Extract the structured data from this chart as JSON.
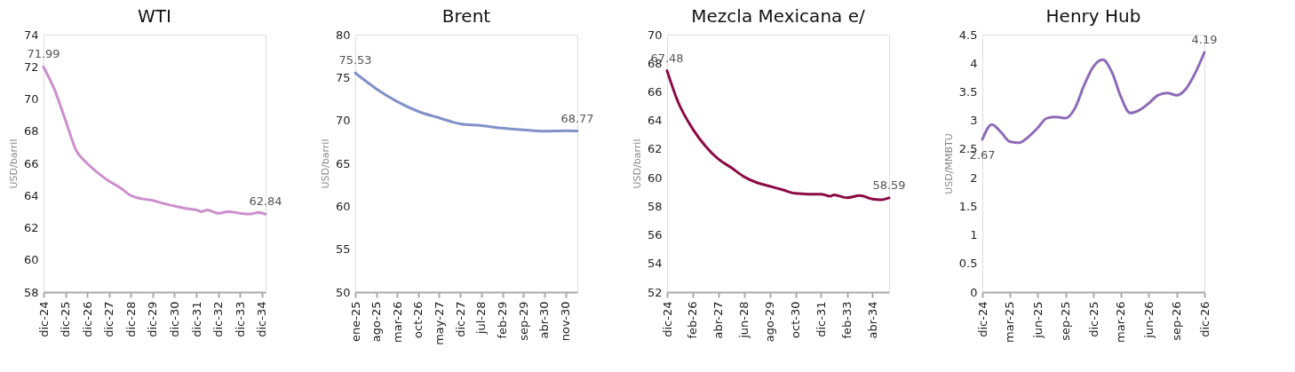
{
  "chart_data": [
    {
      "type": "line",
      "title": "WTI",
      "ylabel": "USD/barril",
      "x": [
        "2024-12",
        "2025-06",
        "2025-12",
        "2026-06",
        "2026-12",
        "2027-06",
        "2027-12",
        "2028-06",
        "2028-12",
        "2029-06",
        "2029-12",
        "2030-06",
        "2030-12",
        "2031-06",
        "2031-12",
        "2032-03",
        "2032-06",
        "2032-12",
        "2033-06",
        "2033-12",
        "2034-06",
        "2034-10",
        "2035-02"
      ],
      "series": [
        {
          "color": "#cc8fcc",
          "values": [
            71.99,
            70.6,
            68.7,
            66.8,
            66.0,
            65.4,
            64.9,
            64.5,
            64.0,
            63.8,
            63.7,
            63.5,
            63.35,
            63.2,
            63.1,
            63.0,
            63.1,
            62.9,
            63.0,
            62.9,
            62.85,
            62.95,
            62.84
          ]
        }
      ],
      "xlim": [
        "2024-12",
        "2035-02"
      ],
      "xticks": [
        {
          "value": "2024-12",
          "label": "dic-24"
        },
        {
          "value": "2025-12",
          "label": "dic-25"
        },
        {
          "value": "2026-12",
          "label": "dic-26"
        },
        {
          "value": "2027-12",
          "label": "dic-27"
        },
        {
          "value": "2028-12",
          "label": "dic-28"
        },
        {
          "value": "2029-12",
          "label": "dic-29"
        },
        {
          "value": "2030-12",
          "label": "dic-30"
        },
        {
          "value": "2031-12",
          "label": "dic-31"
        },
        {
          "value": "2032-12",
          "label": "dic-32"
        },
        {
          "value": "2033-12",
          "label": "dic-33"
        },
        {
          "value": "2034-12",
          "label": "dic-34"
        }
      ],
      "ylim": [
        58,
        74
      ],
      "yticks": [
        58,
        60,
        62,
        64,
        66,
        68,
        70,
        72,
        74
      ],
      "annotations": [
        {
          "text": "71.99",
          "x": "2024-12",
          "y": 71.99
        },
        {
          "text": "62.84",
          "x": "2035-02",
          "y": 62.84
        }
      ]
    },
    {
      "type": "line",
      "title": "Brent",
      "ylabel": "USD/barril",
      "x": [
        "2025-01",
        "2025-08",
        "2026-03",
        "2026-10",
        "2027-05",
        "2027-12",
        "2028-07",
        "2029-02",
        "2029-09",
        "2030-04",
        "2030-11",
        "2031-03"
      ],
      "series": [
        {
          "color": "#8190c8",
          "values": [
            75.53,
            73.7,
            72.2,
            71.05,
            70.3,
            69.6,
            69.4,
            69.1,
            68.9,
            68.75,
            68.8,
            68.77
          ]
        }
      ],
      "xlim": [
        "2025-01",
        "2031-03"
      ],
      "xticks": [
        {
          "value": "2025-01",
          "label": "ene-25"
        },
        {
          "value": "2025-08",
          "label": "ago-25"
        },
        {
          "value": "2026-03",
          "label": "mar-26"
        },
        {
          "value": "2026-10",
          "label": "oct-26"
        },
        {
          "value": "2027-05",
          "label": "may-27"
        },
        {
          "value": "2027-12",
          "label": "dic-27"
        },
        {
          "value": "2028-07",
          "label": "jul-28"
        },
        {
          "value": "2029-02",
          "label": "feb-29"
        },
        {
          "value": "2029-09",
          "label": "sep-29"
        },
        {
          "value": "2030-04",
          "label": "abr-30"
        },
        {
          "value": "2030-11",
          "label": "nov-30"
        }
      ],
      "ylim": [
        50,
        80
      ],
      "yticks": [
        50,
        55,
        60,
        65,
        70,
        75,
        80
      ],
      "annotations": [
        {
          "text": "75.53",
          "x": "2025-01",
          "y": 75.53
        },
        {
          "text": "68.77",
          "x": "2031-03",
          "y": 68.77
        }
      ]
    },
    {
      "type": "line",
      "title": "Mezcla Mexicana e/",
      "ylabel": "USD/barril",
      "x": [
        "2024-12",
        "2025-06",
        "2026-02",
        "2026-09",
        "2027-04",
        "2027-11",
        "2028-06",
        "2029-01",
        "2029-08",
        "2030-03",
        "2030-10",
        "2031-05",
        "2031-12",
        "2032-05",
        "2032-07",
        "2033-02",
        "2033-09",
        "2034-04",
        "2034-08",
        "2035-01"
      ],
      "series": [
        {
          "color": "#8c0a46",
          "values": [
            67.48,
            65.3,
            63.4,
            62.2,
            61.3,
            60.7,
            60.06,
            59.65,
            59.4,
            59.15,
            58.9,
            58.85,
            58.85,
            58.7,
            58.8,
            58.6,
            58.75,
            58.5,
            58.45,
            58.59
          ]
        }
      ],
      "xlim": [
        "2024-12",
        "2035-01"
      ],
      "xticks": [
        {
          "value": "2024-12",
          "label": "dic-24"
        },
        {
          "value": "2026-02",
          "label": "feb-26"
        },
        {
          "value": "2027-04",
          "label": "abr-27"
        },
        {
          "value": "2028-06",
          "label": "jun-28"
        },
        {
          "value": "2029-08",
          "label": "ago-29"
        },
        {
          "value": "2030-10",
          "label": "oct-30"
        },
        {
          "value": "2031-12",
          "label": "dic-31"
        },
        {
          "value": "2033-02",
          "label": "feb-33"
        },
        {
          "value": "2034-04",
          "label": "abr-34"
        }
      ],
      "ylim": [
        52,
        70
      ],
      "yticks": [
        52,
        54,
        56,
        58,
        60,
        62,
        64,
        66,
        68,
        70
      ],
      "annotations": [
        {
          "text": "67.48",
          "x": "2024-12",
          "y": 67.48
        },
        {
          "text": "58.59",
          "x": "2035-01",
          "y": 58.59
        }
      ]
    },
    {
      "type": "line",
      "title": "Henry Hub",
      "ylabel": "USD/MMBTU",
      "x": [
        "2024-12",
        "2025-01",
        "2025-02",
        "2025-03",
        "2025-04",
        "2025-05",
        "2025-06",
        "2025-07",
        "2025-08",
        "2025-09",
        "2025-10",
        "2025-11",
        "2025-12",
        "2026-01",
        "2026-02",
        "2026-03",
        "2026-04",
        "2026-05",
        "2026-06",
        "2026-07",
        "2026-08",
        "2026-09",
        "2026-10",
        "2026-11",
        "2026-12"
      ],
      "series": [
        {
          "color": "#8e6bb8",
          "values": [
            2.67,
            2.93,
            2.79,
            2.63,
            2.61,
            2.71,
            2.87,
            3.04,
            3.06,
            3.04,
            3.21,
            3.62,
            3.94,
            4.06,
            3.83,
            3.42,
            3.13,
            3.18,
            3.3,
            3.44,
            3.48,
            3.44,
            3.55,
            3.83,
            4.19
          ]
        }
      ],
      "xlim": [
        "2024-12",
        "2026-12"
      ],
      "xticks": [
        {
          "value": "2024-12",
          "label": "dic-24"
        },
        {
          "value": "2025-03",
          "label": "mar-25"
        },
        {
          "value": "2025-06",
          "label": "jun-25"
        },
        {
          "value": "2025-09",
          "label": "sep-25"
        },
        {
          "value": "2025-12",
          "label": "dic-25"
        },
        {
          "value": "2026-03",
          "label": "mar-26"
        },
        {
          "value": "2026-06",
          "label": "jun-26"
        },
        {
          "value": "2026-09",
          "label": "sep-26"
        },
        {
          "value": "2026-12",
          "label": "dic-26"
        }
      ],
      "ylim": [
        0,
        4.5
      ],
      "yticks": [
        0,
        0.5,
        1,
        1.5,
        2,
        2.5,
        3,
        3.5,
        4,
        4.5
      ],
      "annotations": [
        {
          "text": "2.67",
          "x": "2024-12",
          "y": 2.67
        },
        {
          "text": "4.19",
          "x": "2026-12",
          "y": 4.19
        }
      ]
    }
  ]
}
